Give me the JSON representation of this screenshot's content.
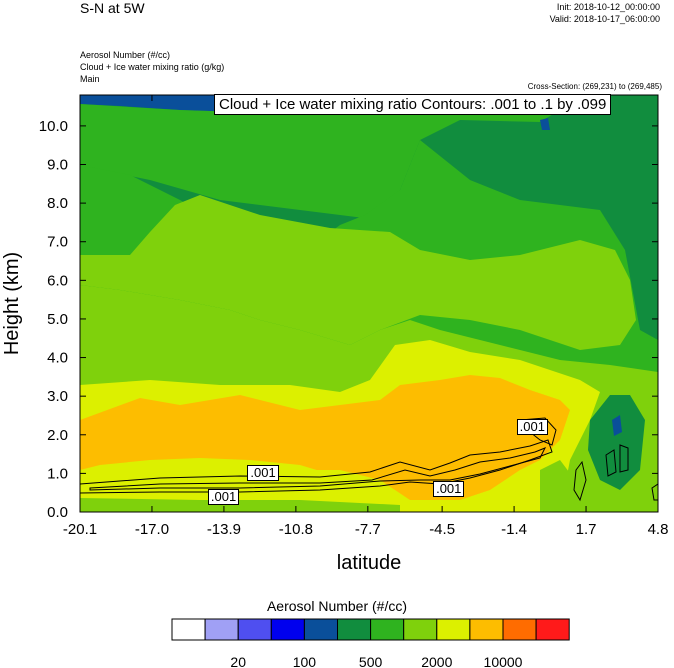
{
  "header": {
    "title": "S-N at 5W",
    "init": "Init: 2018-10-12_00:00:00",
    "valid": "Valid: 2018-10-17_06:00:00",
    "fields": [
      "Aerosol Number   (#/cc)",
      "Cloud + Ice water mixing ratio   (g/kg)",
      "Main"
    ],
    "cross_section": "Cross-Section: (269,231) to (269,485)"
  },
  "chart_data": {
    "type": "heatmap",
    "title": "S-N at 5W",
    "xlabel": "latitude",
    "ylabel": "Height (km)",
    "xlim": [
      -20.1,
      4.8
    ],
    "ylim": [
      0.0,
      10.8
    ],
    "x_ticks": [
      "-20.1",
      "-17.0",
      "-13.9",
      "-10.8",
      "-7.7",
      "-4.5",
      "-1.4",
      "1.7",
      "4.8"
    ],
    "y_ticks": [
      "0.0",
      "1.0",
      "2.0",
      "3.0",
      "4.0",
      "5.0",
      "6.0",
      "7.0",
      "8.0",
      "9.0",
      "10.0"
    ],
    "contour_title": "Cloud + Ice water mixing ratio Contours: .001 to .1 by .099",
    "contour_labels": [
      {
        "text": ".001",
        "x": -13.9,
        "y": 0.4
      },
      {
        "text": ".001",
        "x": -12.2,
        "y": 1.0
      },
      {
        "text": ".001",
        "x": -4.2,
        "y": 0.6
      },
      {
        "text": ".001",
        "x": -0.6,
        "y": 2.2
      }
    ],
    "colorbar": {
      "title": "Aerosol Number  (#/cc)",
      "colors": [
        "#ffffff",
        "#a0a0f5",
        "#4f4ff0",
        "#0000ee",
        "#0a4f9a",
        "#118d3e",
        "#2fb31f",
        "#7fd10c",
        "#dcf000",
        "#fdbd00",
        "#ff6c00",
        "#ff1a1a"
      ],
      "tick_labels": [
        "20",
        "100",
        "500",
        "2000",
        "10000"
      ]
    }
  }
}
